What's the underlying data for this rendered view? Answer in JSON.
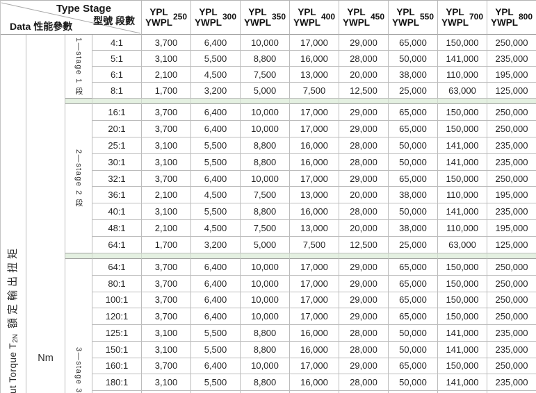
{
  "header": {
    "corner": {
      "type_stage": "Type Stage",
      "model_stage_zh": "型號 段數",
      "data_label": "Data 性能參數"
    },
    "columns": [
      {
        "series1": "YPL",
        "series2": "YWPL",
        "size": "250"
      },
      {
        "series1": "YPL",
        "series2": "YWPL",
        "size": "300"
      },
      {
        "series1": "YPL",
        "series2": "YWPL",
        "size": "350"
      },
      {
        "series1": "YPL",
        "series2": "YWPL",
        "size": "400"
      },
      {
        "series1": "YPL",
        "series2": "YWPL",
        "size": "450"
      },
      {
        "series1": "YPL",
        "series2": "YWPL",
        "size": "550"
      },
      {
        "series1": "YPL",
        "series2": "YWPL",
        "size": "700"
      },
      {
        "series1": "YPL",
        "series2": "YWPL",
        "size": "800"
      }
    ]
  },
  "left_labels": {
    "torque_pre": "ut Torque T",
    "torque_sub": "2N",
    "torque_cjk": "額定輸出扭矩",
    "unit": "Nm"
  },
  "groups": [
    {
      "stage_label": "1—stage 1 段",
      "rows": [
        {
          "ratio": "4:1",
          "values": [
            "3,700",
            "6,400",
            "10,000",
            "17,000",
            "29,000",
            "65,000",
            "150,000",
            "250,000"
          ]
        },
        {
          "ratio": "5:1",
          "values": [
            "3,100",
            "5,500",
            "8,800",
            "16,000",
            "28,000",
            "50,000",
            "141,000",
            "235,000"
          ]
        },
        {
          "ratio": "6:1",
          "values": [
            "2,100",
            "4,500",
            "7,500",
            "13,000",
            "20,000",
            "38,000",
            "110,000",
            "195,000"
          ]
        },
        {
          "ratio": "8:1",
          "values": [
            "1,700",
            "3,200",
            "5,000",
            "7,500",
            "12,500",
            "25,000",
            "63,000",
            "125,000"
          ]
        }
      ]
    },
    {
      "stage_label": "2—stage 2 段",
      "rows": [
        {
          "ratio": "16:1",
          "values": [
            "3,700",
            "6,400",
            "10,000",
            "17,000",
            "29,000",
            "65,000",
            "150,000",
            "250,000"
          ]
        },
        {
          "ratio": "20:1",
          "values": [
            "3,700",
            "6,400",
            "10,000",
            "17,000",
            "29,000",
            "65,000",
            "150,000",
            "250,000"
          ]
        },
        {
          "ratio": "25:1",
          "values": [
            "3,100",
            "5,500",
            "8,800",
            "16,000",
            "28,000",
            "50,000",
            "141,000",
            "235,000"
          ]
        },
        {
          "ratio": "30:1",
          "values": [
            "3,100",
            "5,500",
            "8,800",
            "16,000",
            "28,000",
            "50,000",
            "141,000",
            "235,000"
          ]
        },
        {
          "ratio": "32:1",
          "values": [
            "3,700",
            "6,400",
            "10,000",
            "17,000",
            "29,000",
            "65,000",
            "150,000",
            "250,000"
          ]
        },
        {
          "ratio": "36:1",
          "values": [
            "2,100",
            "4,500",
            "7,500",
            "13,000",
            "20,000",
            "38,000",
            "110,000",
            "195,000"
          ]
        },
        {
          "ratio": "40:1",
          "values": [
            "3,100",
            "5,500",
            "8,800",
            "16,000",
            "28,000",
            "50,000",
            "141,000",
            "235,000"
          ]
        },
        {
          "ratio": "48:1",
          "values": [
            "2,100",
            "4,500",
            "7,500",
            "13,000",
            "20,000",
            "38,000",
            "110,000",
            "195,000"
          ]
        },
        {
          "ratio": "64:1",
          "values": [
            "1,700",
            "3,200",
            "5,000",
            "7,500",
            "12,500",
            "25,000",
            "63,000",
            "125,000"
          ]
        }
      ]
    },
    {
      "stage_label": "3—stage 3 段",
      "rows": [
        {
          "ratio": "64:1",
          "values": [
            "3,700",
            "6,400",
            "10,000",
            "17,000",
            "29,000",
            "65,000",
            "150,000",
            "250,000"
          ]
        },
        {
          "ratio": "80:1",
          "values": [
            "3,700",
            "6,400",
            "10,000",
            "17,000",
            "29,000",
            "65,000",
            "150,000",
            "250,000"
          ]
        },
        {
          "ratio": "100:1",
          "values": [
            "3,700",
            "6,400",
            "10,000",
            "17,000",
            "29,000",
            "65,000",
            "150,000",
            "250,000"
          ]
        },
        {
          "ratio": "120:1",
          "values": [
            "3,700",
            "6,400",
            "10,000",
            "17,000",
            "29,000",
            "65,000",
            "150,000",
            "250,000"
          ]
        },
        {
          "ratio": "125:1",
          "values": [
            "3,100",
            "5,500",
            "8,800",
            "16,000",
            "28,000",
            "50,000",
            "141,000",
            "235,000"
          ]
        },
        {
          "ratio": "150:1",
          "values": [
            "3,100",
            "5,500",
            "8,800",
            "16,000",
            "28,000",
            "50,000",
            "141,000",
            "235,000"
          ]
        },
        {
          "ratio": "160:1",
          "values": [
            "3,700",
            "6,400",
            "10,000",
            "17,000",
            "29,000",
            "65,000",
            "150,000",
            "250,000"
          ]
        },
        {
          "ratio": "180:1",
          "values": [
            "3,100",
            "5,500",
            "8,800",
            "16,000",
            "28,000",
            "50,000",
            "141,000",
            "235,000"
          ]
        }
      ]
    }
  ],
  "colors": {
    "band_green": "#e4f0e1",
    "grid_border": "#bcbcbc",
    "grid_border_dark": "#9e9e9e",
    "text": "#222222"
  }
}
